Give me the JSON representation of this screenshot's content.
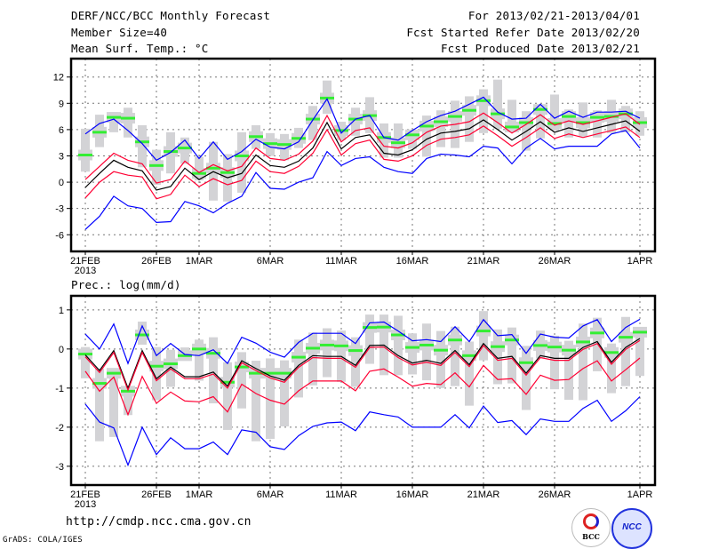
{
  "header": {
    "title": "DERF/NCC/BCC Monthly Forecast",
    "member_size": "Member Size=40",
    "variable": "Mean Surf. Temp.: °C",
    "period": "For 2013/02/21-2013/04/01",
    "start_date": "Fcst Started Refer Date 2013/02/20",
    "produced_date": "Fcst Produced Date 2013/02/21"
  },
  "footer": {
    "url": "http://cmdp.ncc.cma.gov.cn",
    "credit": "GrADS: COLA/IGES",
    "logo_bcc": "BCC",
    "logo_ncc": "NCC"
  },
  "colors": {
    "mean": "#000000",
    "spread": "#ff0033",
    "extreme": "#0000ff",
    "member": "#33ee33",
    "range": "#d3d3d6",
    "grid": "#777777"
  },
  "chart_data": [
    {
      "type": "line",
      "title": "Mean Surf. Temp.: °C",
      "x_start": "21FEB",
      "year_label": "2013",
      "x_ticks": [
        {
          "day": 0,
          "label": "21FEB"
        },
        {
          "day": 5,
          "label": "26FEB"
        },
        {
          "day": 8,
          "label": "1MAR"
        },
        {
          "day": 13,
          "label": "6MAR"
        },
        {
          "day": 18,
          "label": "11MAR"
        },
        {
          "day": 23,
          "label": "16MAR"
        },
        {
          "day": 28,
          "label": "21MAR"
        },
        {
          "day": 33,
          "label": "26MAR"
        },
        {
          "day": 39,
          "label": "1APR"
        }
      ],
      "y_ticks": [
        -6,
        -3,
        0,
        3,
        6,
        9,
        12
      ],
      "ylim": [
        -7.9,
        14.1
      ],
      "grid": true,
      "series": [
        {
          "name": "mean",
          "values": [
            -0.6,
            1.0,
            2.5,
            1.7,
            1.3,
            -0.9,
            -0.5,
            1.6,
            0.3,
            1.2,
            0.5,
            1.0,
            3.1,
            1.9,
            1.7,
            2.4,
            3.9,
            6.8,
            3.8,
            5.1,
            5.4,
            3.3,
            3.1,
            3.7,
            4.9,
            5.6,
            5.8,
            6.1,
            7.1,
            6.0,
            4.8,
            5.8,
            6.9,
            5.7,
            6.2,
            5.8,
            6.2,
            6.6,
            7.0,
            5.8
          ]
        },
        {
          "name": "upper",
          "values": [
            0.3,
            1.8,
            3.3,
            2.5,
            2.1,
            -0.1,
            0.3,
            2.4,
            1.1,
            2.0,
            1.3,
            1.8,
            3.9,
            2.7,
            2.5,
            3.2,
            4.7,
            7.6,
            4.6,
            5.9,
            6.2,
            4.1,
            3.9,
            4.5,
            5.7,
            6.4,
            6.6,
            6.9,
            7.9,
            6.8,
            5.6,
            6.6,
            7.7,
            6.5,
            7.0,
            6.6,
            7.0,
            7.4,
            7.8,
            6.6
          ]
        },
        {
          "name": "lower",
          "values": [
            -1.8,
            0.0,
            1.2,
            0.8,
            0.6,
            -1.9,
            -1.4,
            0.8,
            -0.5,
            0.4,
            -0.3,
            0.2,
            2.4,
            1.2,
            1.0,
            1.8,
            3.3,
            6.0,
            3.1,
            4.4,
            4.8,
            2.6,
            2.4,
            3.0,
            4.2,
            4.9,
            5.1,
            5.4,
            6.4,
            5.3,
            4.1,
            5.1,
            6.2,
            5.0,
            5.5,
            5.1,
            5.5,
            5.9,
            6.3,
            5.1
          ]
        },
        {
          "name": "max",
          "values": [
            5.5,
            6.7,
            7.2,
            5.9,
            4.4,
            2.5,
            3.4,
            4.8,
            2.7,
            4.6,
            2.6,
            3.5,
            4.9,
            4.0,
            3.8,
            4.6,
            7.1,
            9.5,
            5.6,
            7.2,
            7.6,
            5.1,
            4.8,
            5.9,
            6.9,
            7.6,
            8.1,
            8.9,
            9.7,
            8.0,
            7.2,
            7.3,
            8.9,
            7.3,
            8.1,
            7.4,
            8.0,
            8.0,
            8.1,
            7.3
          ]
        },
        {
          "name": "min",
          "values": [
            -5.4,
            -3.9,
            -1.6,
            -2.7,
            -3.0,
            -4.6,
            -4.5,
            -2.2,
            -2.7,
            -3.5,
            -2.4,
            -1.6,
            1.1,
            -0.7,
            -0.8,
            0.0,
            0.5,
            3.5,
            1.9,
            2.7,
            2.9,
            1.7,
            1.2,
            1.0,
            2.7,
            3.2,
            3.1,
            2.9,
            4.1,
            3.9,
            2.1,
            3.9,
            5.0,
            3.8,
            4.1,
            4.1,
            4.1,
            5.5,
            5.9,
            3.9
          ]
        }
      ],
      "member_mark": [
        3.1,
        5.7,
        7.4,
        7.3,
        4.6,
        1.9,
        3.5,
        3.9,
        1.0,
        1.6,
        1.1,
        3.0,
        5.2,
        4.4,
        4.3,
        5.0,
        7.2,
        9.6,
        5.9,
        7.2,
        7.6,
        5.1,
        4.5,
        5.4,
        6.4,
        6.9,
        7.5,
        8.2,
        9.3,
        7.8,
        6.3,
        6.8,
        8.3,
        6.7,
        7.5,
        6.8,
        7.4,
        7.5,
        7.8,
        6.8
      ],
      "range_hi": [
        6.1,
        7.7,
        8.0,
        8.5,
        6.5,
        3.7,
        5.7,
        5.1,
        2.9,
        4.6,
        3.2,
        5.7,
        6.5,
        5.6,
        5.5,
        6.2,
        8.7,
        11.6,
        6.9,
        8.5,
        9.7,
        6.7,
        6.7,
        6.0,
        7.6,
        8.2,
        9.3,
        9.8,
        10.6,
        11.7,
        9.4,
        8.1,
        8.0,
        10.0,
        8.3,
        9.1,
        8.2,
        9.4,
        8.7,
        8.1
      ],
      "range_lo": [
        1.2,
        4.0,
        5.7,
        5.1,
        1.7,
        -0.3,
        1.0,
        2.1,
        0.2,
        -2.1,
        -2.2,
        -1.2,
        3.8,
        3.0,
        2.5,
        3.9,
        4.8,
        7.8,
        4.8,
        5.3,
        5.6,
        2.8,
        2.8,
        3.8,
        2.9,
        4.0,
        3.9,
        4.6,
        5.6,
        6.1,
        5.8,
        3.6,
        5.0,
        5.9,
        5.1,
        5.2,
        5.1,
        5.6,
        5.7,
        5.3
      ]
    },
    {
      "type": "line",
      "title": "Prec.: log(mm/d)",
      "x_start": "21FEB",
      "year_label": "2013",
      "x_ticks": [
        {
          "day": 0,
          "label": "21FEB"
        },
        {
          "day": 5,
          "label": "26FEB"
        },
        {
          "day": 8,
          "label": "1MAR"
        },
        {
          "day": 13,
          "label": "6MAR"
        },
        {
          "day": 18,
          "label": "11MAR"
        },
        {
          "day": 23,
          "label": "16MAR"
        },
        {
          "day": 28,
          "label": "21MAR"
        },
        {
          "day": 33,
          "label": "26MAR"
        },
        {
          "day": 39,
          "label": "1APR"
        }
      ],
      "y_ticks": [
        -3,
        -2,
        -1,
        0,
        1
      ],
      "ylim": [
        -3.48,
        1.36
      ],
      "grid": true,
      "series": [
        {
          "name": "mean",
          "values": [
            -0.15,
            -0.55,
            -0.04,
            -1.0,
            -0.04,
            -0.76,
            -0.46,
            -0.71,
            -0.71,
            -0.59,
            -0.95,
            -0.3,
            -0.5,
            -0.69,
            -0.8,
            -0.42,
            -0.17,
            -0.19,
            -0.19,
            -0.42,
            0.09,
            0.1,
            -0.17,
            -0.36,
            -0.29,
            -0.37,
            -0.04,
            -0.4,
            0.14,
            -0.24,
            -0.19,
            -0.62,
            -0.17,
            -0.24,
            -0.24,
            0.04,
            0.19,
            -0.34,
            0.04,
            0.27
          ]
        },
        {
          "name": "upper",
          "values": [
            -0.2,
            -0.6,
            -0.09,
            -1.05,
            -0.09,
            -0.81,
            -0.51,
            -0.76,
            -0.76,
            -0.64,
            -1.0,
            -0.35,
            -0.55,
            -0.74,
            -0.85,
            -0.47,
            -0.22,
            -0.24,
            -0.24,
            -0.47,
            0.04,
            0.05,
            -0.22,
            -0.41,
            -0.34,
            -0.42,
            -0.09,
            -0.45,
            0.09,
            -0.29,
            -0.24,
            -0.67,
            -0.22,
            -0.29,
            -0.29,
            -0.01,
            0.14,
            -0.39,
            -0.01,
            0.22
          ]
        },
        {
          "name": "lower",
          "values": [
            -0.57,
            -1.08,
            -0.72,
            -1.68,
            -0.7,
            -1.39,
            -1.1,
            -1.33,
            -1.35,
            -1.22,
            -1.61,
            -0.9,
            -1.14,
            -1.31,
            -1.41,
            -1.07,
            -0.82,
            -0.82,
            -0.82,
            -1.07,
            -0.57,
            -0.51,
            -0.72,
            -0.95,
            -0.88,
            -0.91,
            -0.61,
            -0.97,
            -0.42,
            -0.78,
            -0.76,
            -1.16,
            -0.67,
            -0.8,
            -0.78,
            -0.5,
            -0.3,
            -0.82,
            -0.53,
            -0.23
          ]
        },
        {
          "name": "max",
          "values": [
            0.38,
            0.0,
            0.64,
            -0.37,
            0.59,
            -0.17,
            0.14,
            -0.14,
            -0.17,
            -0.02,
            -0.37,
            0.3,
            0.15,
            -0.08,
            -0.21,
            0.17,
            0.4,
            0.4,
            0.4,
            0.14,
            0.67,
            0.69,
            0.46,
            0.21,
            0.24,
            0.19,
            0.57,
            0.19,
            0.75,
            0.34,
            0.37,
            -0.11,
            0.38,
            0.3,
            0.28,
            0.59,
            0.75,
            0.19,
            0.55,
            0.76
          ]
        },
        {
          "name": "min",
          "values": [
            -1.41,
            -1.87,
            -2.02,
            -2.97,
            -2.0,
            -2.7,
            -2.27,
            -2.55,
            -2.55,
            -2.38,
            -2.7,
            -2.07,
            -2.13,
            -2.5,
            -2.57,
            -2.22,
            -1.98,
            -1.89,
            -1.87,
            -2.09,
            -1.61,
            -1.68,
            -1.74,
            -2.0,
            -2.0,
            -2.0,
            -1.68,
            -2.02,
            -1.46,
            -1.88,
            -1.83,
            -2.19,
            -1.79,
            -1.85,
            -1.85,
            -1.52,
            -1.31,
            -1.85,
            -1.58,
            -1.22
          ]
        }
      ],
      "member_mark": [
        -0.13,
        -0.88,
        -0.62,
        -1.08,
        0.36,
        -0.44,
        -0.38,
        -0.17,
        0.0,
        -0.11,
        -0.85,
        -0.46,
        -0.62,
        -0.62,
        -0.62,
        -0.21,
        0.02,
        0.1,
        0.08,
        -0.04,
        0.55,
        0.56,
        0.36,
        0.04,
        0.1,
        -0.03,
        0.23,
        -0.17,
        0.46,
        0.06,
        0.23,
        -0.35,
        0.09,
        0.05,
        -0.03,
        0.18,
        0.41,
        -0.09,
        0.3,
        0.43
      ],
      "range_hi": [
        0.05,
        -0.5,
        -0.55,
        -0.99,
        0.7,
        0.05,
        -0.02,
        0.04,
        0.24,
        0.3,
        -0.34,
        -0.08,
        -0.3,
        -0.24,
        -0.29,
        0.24,
        0.42,
        0.53,
        0.47,
        0.3,
        0.88,
        0.88,
        0.85,
        0.4,
        0.65,
        0.46,
        0.57,
        0.19,
        0.97,
        0.5,
        0.55,
        0.08,
        0.47,
        0.34,
        0.21,
        0.65,
        0.8,
        0.14,
        0.82,
        0.46
      ],
      "range_lo": [
        -0.75,
        -2.36,
        -2.25,
        -1.69,
        0.11,
        -1.31,
        -0.97,
        -0.29,
        -0.81,
        -1.39,
        -2.07,
        -1.52,
        -2.36,
        -2.3,
        -1.98,
        -1.24,
        -0.93,
        -0.72,
        -0.84,
        -0.97,
        -0.38,
        -0.67,
        -0.67,
        -0.65,
        -0.8,
        -1.0,
        -0.95,
        -1.45,
        -0.29,
        -0.9,
        -0.88,
        -1.56,
        -0.24,
        -1.03,
        -1.3,
        -1.31,
        -0.57,
        -1.13,
        -0.95,
        -0.69
      ]
    }
  ]
}
